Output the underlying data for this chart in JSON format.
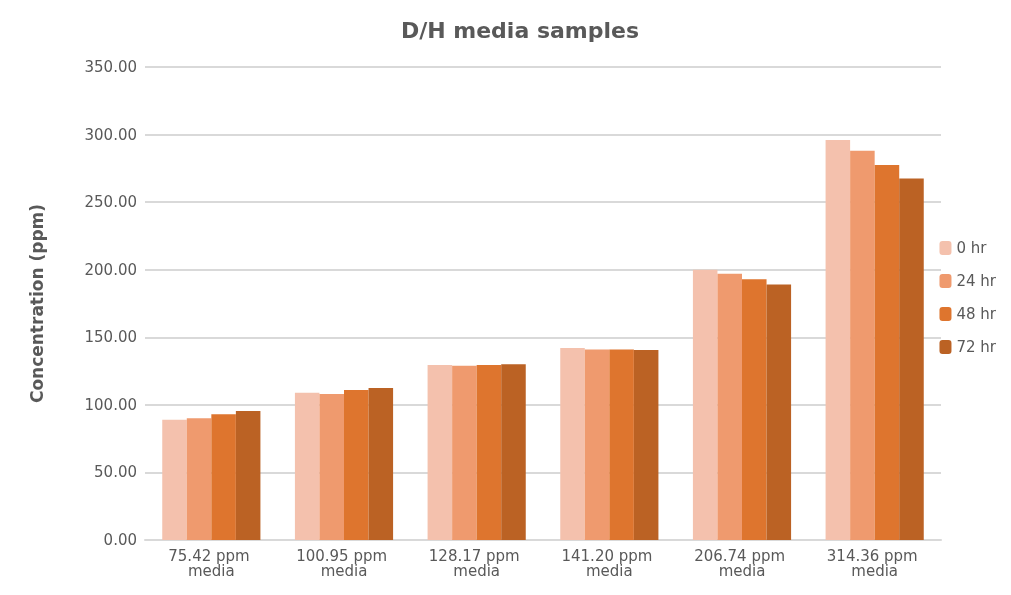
{
  "chart_data": {
    "type": "bar",
    "title": "D/H media samples",
    "ylabel": "Concentration (ppm)",
    "categories": [
      "75.42 ppm media",
      "100.95 ppm media",
      "128.17 ppm media",
      "141.20 ppm media",
      "206.74 ppm media",
      "314.36 ppm media"
    ],
    "series": [
      {
        "name": "0 hr",
        "color": "#f4c1ad",
        "values": [
          89,
          109,
          129.5,
          142,
          200,
          296
        ]
      },
      {
        "name": "24 hr",
        "color": "#ef9a6e",
        "values": [
          90,
          108,
          129,
          141,
          197,
          288
        ]
      },
      {
        "name": "48 hr",
        "color": "#de752e",
        "values": [
          93,
          111,
          129.5,
          141,
          193,
          277.5
        ]
      },
      {
        "name": "72 hr",
        "color": "#bb6224",
        "values": [
          95.5,
          112.5,
          130,
          140.5,
          189,
          267.5
        ]
      }
    ],
    "ylim": [
      0,
      350
    ],
    "yticks": [
      {
        "value": 0,
        "label": "0.00"
      },
      {
        "value": 50,
        "label": "50.00"
      },
      {
        "value": 100,
        "label": "100.00"
      },
      {
        "value": 150,
        "label": "150.00"
      },
      {
        "value": 200,
        "label": "200.00"
      },
      {
        "value": 250,
        "label": "250.00"
      },
      {
        "value": 300,
        "label": "300.00"
      },
      {
        "value": 350,
        "label": "350.00"
      }
    ],
    "grid": "y",
    "legend": "right"
  }
}
